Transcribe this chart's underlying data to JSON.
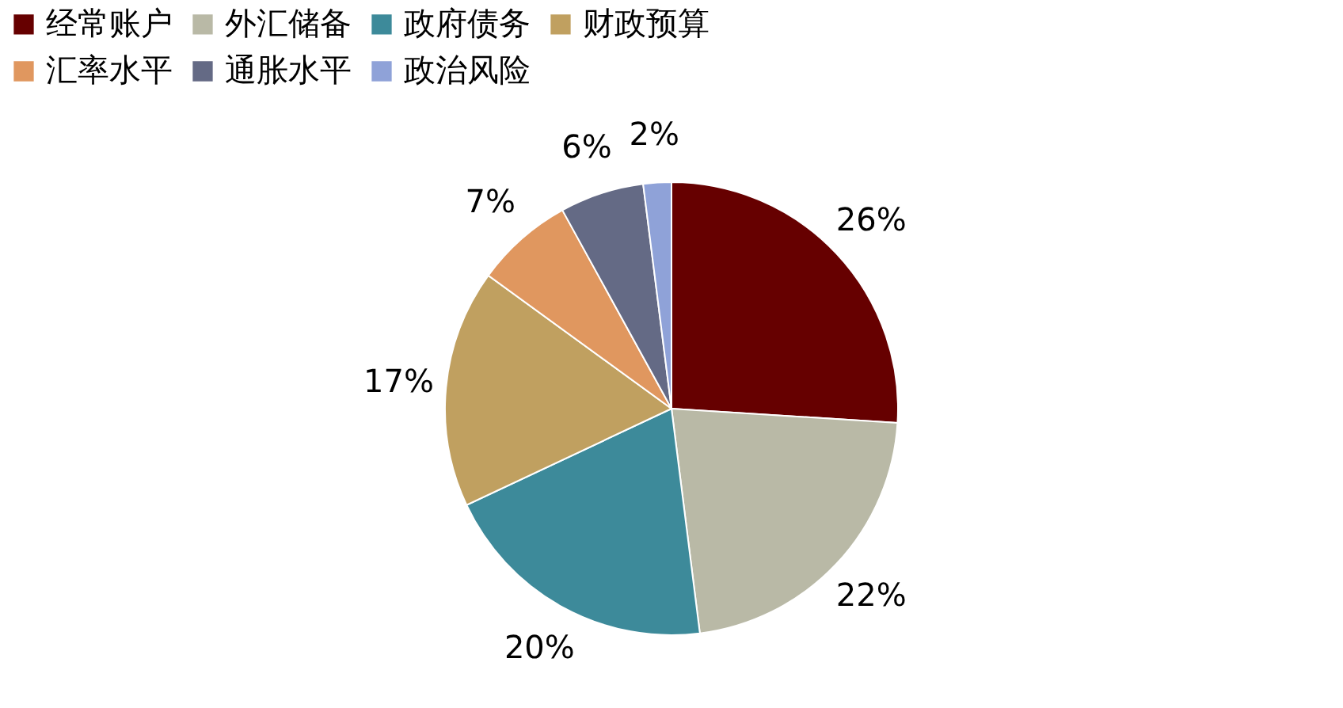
{
  "chart_data": {
    "type": "pie",
    "categories": [
      "经常账户",
      "外汇储备",
      "政府债务",
      "财政预算",
      "汇率水平",
      "通胀水平",
      "政治风险"
    ],
    "values": [
      26,
      22,
      20,
      17,
      7,
      6,
      2
    ],
    "value_labels": [
      "26%",
      "22%",
      "20%",
      "17%",
      "7%",
      "6%",
      "2%"
    ],
    "colors": [
      "#660000",
      "#b9b9a6",
      "#3d8a9a",
      "#c0a060",
      "#e0975f",
      "#646a85",
      "#8fa2d8"
    ],
    "legend": "top"
  }
}
